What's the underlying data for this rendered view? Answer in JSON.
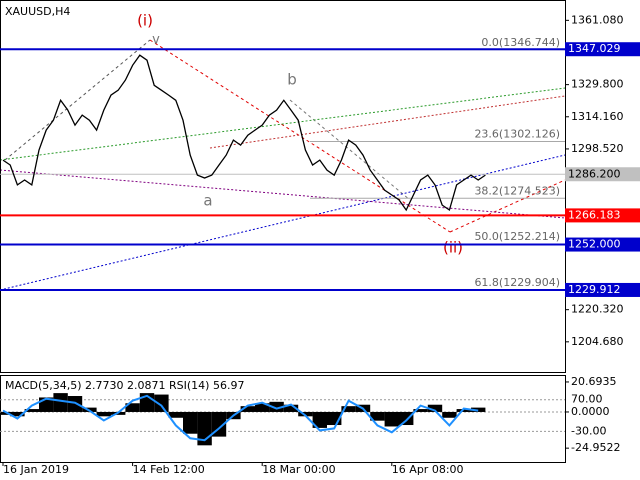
{
  "chart_data": [
    {
      "type": "line",
      "title": "XAUUSD,H4",
      "color": "#000000",
      "categories": [
        "16 Jan 2019",
        null,
        null,
        null,
        null,
        null,
        null,
        null,
        null,
        null,
        null,
        null,
        null,
        null,
        null,
        null,
        null,
        null,
        "14 Feb 12:00",
        null,
        null,
        null,
        null,
        null,
        null,
        null,
        null,
        null,
        null,
        null,
        null,
        null,
        null,
        null,
        null,
        null,
        "18 Mar 00:00",
        null,
        null,
        null,
        null,
        null,
        null,
        null,
        null,
        null,
        null,
        null,
        null,
        null,
        null,
        null,
        null,
        null,
        "16 Apr 08:00",
        null,
        null,
        null,
        null,
        null,
        null,
        null,
        null,
        null,
        null,
        null,
        null,
        null
      ],
      "values": [
        1293.1,
        1290.7,
        1281.0,
        1283.4,
        1281.0,
        1298.0,
        1307.7,
        1312.5,
        1322.2,
        1317.4,
        1310.1,
        1315.0,
        1312.5,
        1307.7,
        1317.4,
        1324.7,
        1327.1,
        1332.0,
        1339.2,
        1344.1,
        1341.7,
        1329.5,
        1327.1,
        1324.7,
        1322.2,
        1312.5,
        1295.5,
        1285.8,
        1284.4,
        1285.8,
        1290.7,
        1295.5,
        1302.8,
        1300.4,
        1305.2,
        1307.7,
        1310.1,
        1315.0,
        1317.4,
        1322.2,
        1317.4,
        1312.5,
        1298.0,
        1290.7,
        1293.1,
        1288.2,
        1285.8,
        1293.1,
        1302.8,
        1300.4,
        1295.5,
        1288.2,
        1283.4,
        1278.5,
        1276.1,
        1273.7,
        1268.8,
        1276.1,
        1283.4,
        1285.8,
        1281.0,
        1271.2,
        1268.8,
        1281.0,
        1283.4,
        1285.8,
        1283.4,
        1285.8
      ],
      "ylim": [
        1190,
        1370
      ],
      "yticks": [
        {
          "value": 1361.08,
          "label": "1361.080"
        },
        {
          "value": 1329.8,
          "label": "1329.800"
        },
        {
          "value": 1314.16,
          "label": "1314.160"
        },
        {
          "value": 1298.52,
          "label": "1298.520"
        },
        {
          "value": 1220.32,
          "label": "1220.320"
        },
        {
          "value": 1204.68,
          "label": "1204.680"
        }
      ],
      "hlines": [
        {
          "value": 1347.029,
          "color": "#0000cc"
        },
        {
          "value": 1266.183,
          "color": "#ff0000"
        },
        {
          "value": 1252,
          "label": "1252.000",
          "color": "#0000cc"
        },
        {
          "value": 1229.912,
          "color": "#0000cc"
        }
      ],
      "current_price": {
        "value": 1286.2,
        "label": "1286.200",
        "color": "#c0c0c0"
      },
      "fib_levels": [
        {
          "value": 1346.744,
          "label": "0.0(1346.744)"
        },
        {
          "value": 1302.126,
          "label": "23.6(1302.126)"
        },
        {
          "value": 1274.523,
          "label": "38.2(1274.523)"
        },
        {
          "value": 1252.214,
          "label": "50.0(1252.214)"
        },
        {
          "value": 1229.904,
          "label": "61.8(1229.904)"
        }
      ],
      "annotations": [
        "(i)",
        "v",
        "b",
        "a",
        "(ii)"
      ]
    },
    {
      "type": "bar",
      "title": "MACD(5,34,5) 2.7730 2.0871 RSI(14) 56.97",
      "ylim": [
        -34.5,
        24.8
      ],
      "yticks": [
        20.6935,
        {
          "value": 0,
          "label": "0.0000"
        },
        -24.9522
      ],
      "y2lim": [
        -127,
        145
      ],
      "y2ticks": [
        {
          "value": 70,
          "label": "70.00"
        },
        {
          "value": -30,
          "label": "-30.00"
        }
      ],
      "series": [
        {
          "color": "#000000",
          "values": [
            -2,
            -3,
            2,
            10,
            13,
            11,
            3,
            -3,
            -2,
            6,
            13,
            12,
            -4,
            -15,
            -23,
            -17,
            -5,
            4,
            6,
            7,
            5,
            -3,
            -11,
            -9,
            4,
            5,
            -6,
            -10,
            -9,
            2,
            5,
            -4,
            2,
            3
          ]
        },
        {
          "color": "#1e90ff",
          "axis": "y2",
          "values": [
            35.6,
            10.6,
            51.3,
            73.1,
            66.9,
            60.6,
            35.6,
            4.4,
            29.4,
            66.9,
            82.5,
            51.3,
            -11.3,
            -51.9,
            -58.1,
            -20.6,
            20,
            51.3,
            60.6,
            41.9,
            54.4,
            20,
            -26.9,
            -20.6,
            66.9,
            41.9,
            -11.3,
            -33.1,
            4.4,
            51.3,
            35.6,
            -11.3,
            41.9,
            35.6
          ]
        }
      ]
    }
  ]
}
